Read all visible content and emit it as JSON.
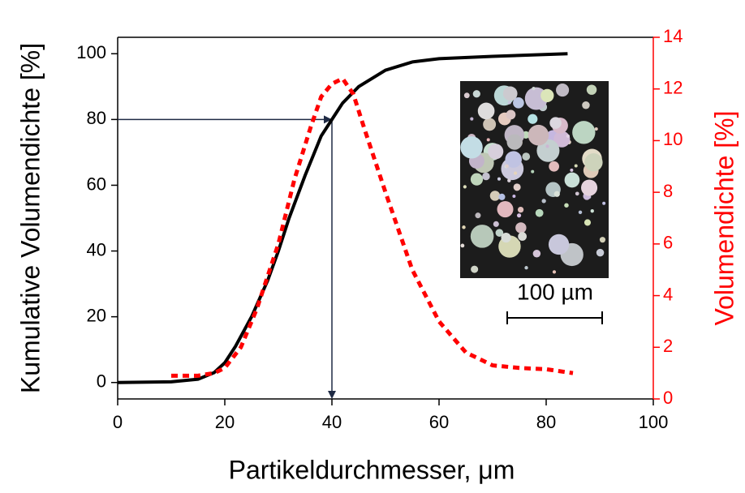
{
  "chart_data": {
    "type": "line",
    "xlabel": "Partikeldurchmesser, μm",
    "ylabel": "Kumulative Volumendichte [%]",
    "y2label": "Volumendichte [%]",
    "inset_label": "100 µm",
    "xlim": [
      0,
      100
    ],
    "xticks": [
      0,
      20,
      40,
      60,
      80,
      100
    ],
    "ylim": [
      -5,
      105
    ],
    "yticks": [
      0,
      20,
      40,
      60,
      80,
      100
    ],
    "y2lim": [
      0,
      14
    ],
    "y2ticks": [
      0,
      2,
      4,
      6,
      8,
      10,
      12,
      14
    ],
    "y2color": "#ff0000",
    "marker": {
      "x": 40,
      "y": 80
    },
    "series": [
      {
        "color": "#000000",
        "style": "solid",
        "x": [
          0,
          10,
          15,
          18,
          20,
          22,
          25,
          28,
          30,
          32,
          35,
          38,
          40,
          42,
          45,
          50,
          55,
          60,
          70,
          84
        ],
        "values": [
          0,
          0.2,
          1,
          3,
          6,
          11,
          20,
          31,
          40,
          50,
          63,
          75,
          80,
          85,
          90,
          95,
          97.5,
          98.5,
          99.2,
          100
        ]
      },
      {
        "color": "#ff0000",
        "style": "dashed",
        "axis": "y2",
        "x": [
          10,
          15,
          18,
          20,
          23,
          26,
          30,
          33,
          36,
          38,
          40,
          42,
          44,
          46,
          50,
          55,
          60,
          65,
          70,
          75,
          80,
          85
        ],
        "values": [
          0.9,
          0.9,
          1.0,
          1.2,
          2,
          3.5,
          6,
          8.5,
          10.5,
          11.7,
          12.2,
          12.4,
          11.8,
          10.5,
          8,
          5,
          3,
          1.8,
          1.3,
          1.2,
          1.15,
          1.0
        ]
      }
    ]
  }
}
